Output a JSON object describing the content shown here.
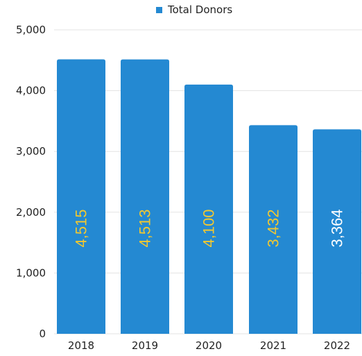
{
  "chart_data": {
    "type": "bar",
    "categories": [
      "2018",
      "2019",
      "2020",
      "2021",
      "2022"
    ],
    "series": [
      {
        "name": "Total Donors",
        "values": [
          4515,
          4513,
          4100,
          3432,
          3364
        ]
      }
    ],
    "data_labels": [
      "4,515",
      "4,513",
      "4,100",
      "3,432",
      "3,364"
    ],
    "data_label_colors": [
      "#f2c830",
      "#f2c830",
      "#f2c830",
      "#f2c830",
      "#ffffff"
    ],
    "y_ticks": [
      0,
      1000,
      2000,
      3000,
      4000,
      5000
    ],
    "y_tick_labels": [
      "0",
      "1,000",
      "2,000",
      "3,000",
      "4,000",
      "5,000"
    ],
    "ylim": [
      0,
      5000
    ],
    "grid": true,
    "legend_position": "top-center",
    "bar_color": "#2489d2",
    "gridline_color": "#e3e3e3"
  }
}
